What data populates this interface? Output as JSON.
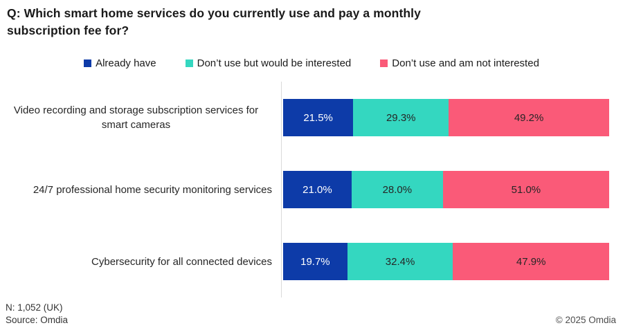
{
  "title": "Q: Which smart home services do you currently use and pay a monthly subscription fee for?",
  "chart_data": {
    "type": "bar",
    "orientation": "horizontal-stacked",
    "title": "Q: Which smart home services do you currently use and pay a monthly subscription fee for?",
    "categories": [
      "Video recording and storage subscription services for smart cameras",
      "24/7 professional home security monitoring services",
      "Cybersecurity for all connected devices"
    ],
    "series": [
      {
        "name": "Already have",
        "color": "#0d3ba8",
        "label_color": "#ffffff",
        "values": [
          21.5,
          21.0,
          19.7
        ]
      },
      {
        "name": "Don’t use but would be interested",
        "color": "#34d7c0",
        "label_color": "#262626",
        "values": [
          29.3,
          28.0,
          32.4
        ]
      },
      {
        "name": "Don’t use and am not interested",
        "color": "#fa5a78",
        "label_color": "#262626",
        "values": [
          49.2,
          51.0,
          47.9
        ]
      }
    ],
    "value_format": "percent_one_decimal",
    "xlim": [
      0,
      100
    ],
    "grid": false,
    "legend_position": "top",
    "axis_line_color": "#d9d9d9"
  },
  "footer": {
    "sample_note": "N: 1,052 (UK)",
    "source": "Source: Omdia",
    "copyright": "© 2025 Omdia"
  }
}
